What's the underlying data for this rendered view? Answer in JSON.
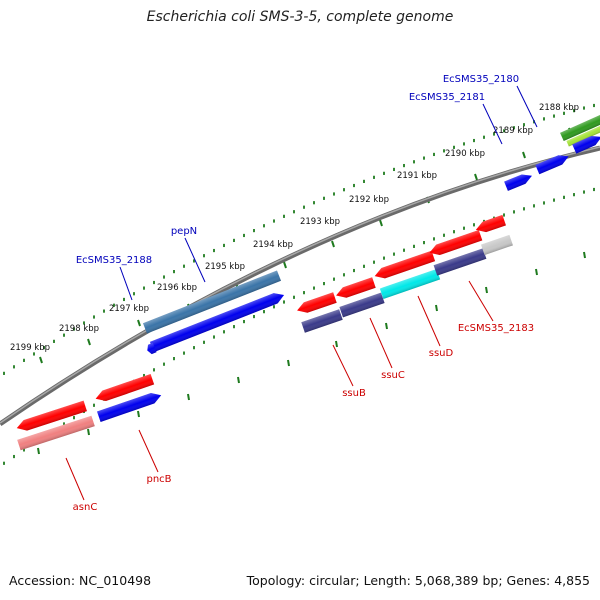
{
  "title": "Escherichia coli SMS-3-5, complete genome",
  "footer": {
    "accession": "Accession: NC_010498",
    "topology": "Topology: circular; Length: 5,068,389 bp; Genes: 4,855"
  },
  "colors": {
    "backbone": "#888888",
    "tick": "#1e7a1e",
    "forward_label": "#0000bb",
    "reverse_label": "#cc0000",
    "cds_blue": "#0000ee",
    "steel_blue": "#3a74a8",
    "dark_slate": "#3a3a8a",
    "cyan": "#00e8e8",
    "red": "#ff0000",
    "pink": "#f08080",
    "green": "#2f9a1f",
    "light_green": "#a6e43a",
    "silver": "#c8c8c8"
  },
  "scale": {
    "unit": "kbp",
    "ticks": [
      {
        "kbp": 2188,
        "label": "2188 kbp"
      },
      {
        "kbp": 2189,
        "label": "2189 kbp"
      },
      {
        "kbp": 2190,
        "label": "2190 kbp"
      },
      {
        "kbp": 2191,
        "label": "2191 kbp"
      },
      {
        "kbp": 2192,
        "label": "2192 kbp"
      },
      {
        "kbp": 2193,
        "label": "2193 kbp"
      },
      {
        "kbp": 2194,
        "label": "2194 kbp"
      },
      {
        "kbp": 2195,
        "label": "2195 kbp"
      },
      {
        "kbp": 2196,
        "label": "2196 kbp"
      },
      {
        "kbp": 2197,
        "label": "2197 kbp"
      },
      {
        "kbp": 2198,
        "label": "2198 kbp"
      },
      {
        "kbp": 2199,
        "label": "2199 kbp"
      }
    ]
  },
  "labels": {
    "forward": [
      {
        "text": "EcSMS35_2180"
      },
      {
        "text": "EcSMS35_2181"
      },
      {
        "text": "pepN"
      },
      {
        "text": "EcSMS35_2188"
      }
    ],
    "reverse": [
      {
        "text": "EcSMS35_2183"
      },
      {
        "text": "ssuD"
      },
      {
        "text": "ssuC"
      },
      {
        "text": "ssuB"
      },
      {
        "text": "pncB"
      },
      {
        "text": "asnC"
      }
    ]
  }
}
